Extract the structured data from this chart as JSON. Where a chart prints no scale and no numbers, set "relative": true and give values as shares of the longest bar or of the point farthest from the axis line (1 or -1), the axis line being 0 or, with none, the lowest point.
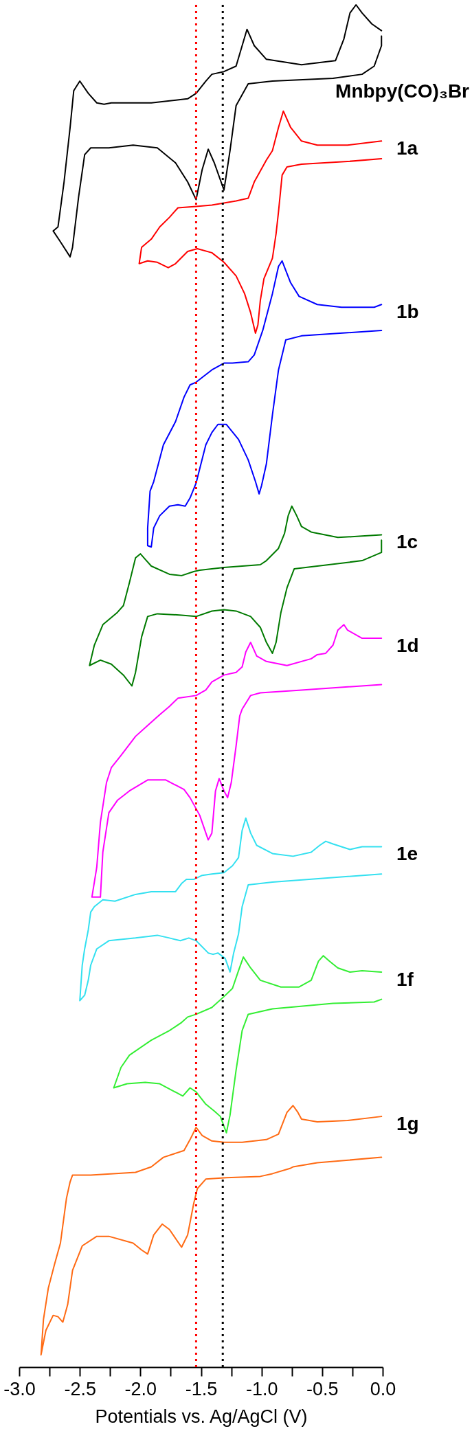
{
  "chart_data": {
    "type": "line",
    "relative": true,
    "xlabel": "Potentials vs. Ag/AgCl (V)",
    "xlim": [
      -3,
      0
    ],
    "xticks": [
      {
        "value": -3,
        "label": "-3.0"
      },
      {
        "value": -2.75,
        "label": null
      },
      {
        "value": -2.5,
        "label": "-2.5"
      },
      {
        "value": -2.25,
        "label": null
      },
      {
        "value": -2,
        "label": "-2.0"
      },
      {
        "value": -1.75,
        "label": null
      },
      {
        "value": -1.5,
        "label": "-1.5"
      },
      {
        "value": -1.25,
        "label": null
      },
      {
        "value": -1,
        "label": "-1.0"
      },
      {
        "value": -0.75,
        "label": null
      },
      {
        "value": -0.5,
        "label": "-0.5"
      },
      {
        "value": -0.25,
        "label": null
      },
      {
        "value": 0,
        "label": "0.0"
      }
    ],
    "ref_lines": [
      {
        "axis": "x",
        "value": -1.54,
        "color": "#ff0000",
        "line_style": "dotted"
      },
      {
        "axis": "x",
        "value": -1.32,
        "color": "#000000",
        "line_style": "dotted"
      }
    ],
    "series": [
      {
        "name": "Mnbpy(CO)₃Br",
        "color": "#000000",
        "x": [
          -0.01,
          -0.09,
          -0.17,
          -0.22,
          -0.27,
          -0.32,
          -0.39,
          -0.67,
          -0.96,
          -1.06,
          -1.12,
          -1.16,
          -1.21,
          -1.31,
          -1.41,
          -1.46,
          -1.54,
          -1.61,
          -1.91,
          -2.16,
          -2.24,
          -2.3,
          -2.36,
          -2.43,
          -2.5,
          -2.55,
          -2.58,
          -2.63,
          -2.68,
          -2.72,
          -2.66,
          -2.58,
          -2.56,
          -2.51,
          -2.46,
          -2.41,
          -2.26,
          -2.06,
          -1.86,
          -1.71,
          -1.61,
          -1.54,
          -1.49,
          -1.44,
          -1.39,
          -1.31,
          -1.26,
          -1.21,
          -1.11,
          -0.91,
          -0.41,
          -0.17,
          -0.07,
          -0.01,
          -0.01
        ],
        "values": [
          0.981,
          0.986,
          0.994,
          1.0,
          0.994,
          0.975,
          0.959,
          0.956,
          0.96,
          0.97,
          0.982,
          0.97,
          0.955,
          0.951,
          0.949,
          0.944,
          0.935,
          0.931,
          0.928,
          0.928,
          0.928,
          0.927,
          0.928,
          0.935,
          0.944,
          0.937,
          0.91,
          0.87,
          0.837,
          0.834,
          0.826,
          0.815,
          0.822,
          0.859,
          0.89,
          0.895,
          0.895,
          0.897,
          0.895,
          0.884,
          0.87,
          0.857,
          0.879,
          0.894,
          0.884,
          0.864,
          0.893,
          0.926,
          0.942,
          0.944,
          0.946,
          0.949,
          0.955,
          0.97,
          0.977
        ]
      },
      {
        "name": "1a",
        "color": "#ff0000",
        "x": [
          -0.01,
          -0.29,
          -0.54,
          -0.67,
          -0.76,
          -0.82,
          -0.86,
          -0.91,
          -0.96,
          -1.06,
          -1.11,
          -1.21,
          -1.41,
          -1.54,
          -1.69,
          -1.76,
          -1.84,
          -1.91,
          -1.99,
          -2.01,
          -1.94,
          -1.86,
          -1.77,
          -1.71,
          -1.61,
          -1.53,
          -1.41,
          -1.31,
          -1.21,
          -1.14,
          -1.09,
          -1.05,
          -1.03,
          -1.01,
          -0.98,
          -0.91,
          -0.88,
          -0.86,
          -0.83,
          -0.79,
          -0.67,
          -0.29,
          -0.01
        ],
        "values": [
          0.9,
          0.897,
          0.897,
          0.9,
          0.91,
          0.922,
          0.91,
          0.893,
          0.886,
          0.87,
          0.858,
          0.856,
          0.853,
          0.852,
          0.851,
          0.844,
          0.837,
          0.828,
          0.822,
          0.81,
          0.812,
          0.811,
          0.807,
          0.81,
          0.819,
          0.821,
          0.818,
          0.811,
          0.801,
          0.788,
          0.774,
          0.759,
          0.765,
          0.783,
          0.799,
          0.814,
          0.832,
          0.848,
          0.875,
          0.881,
          0.883,
          0.885,
          0.887
        ]
      },
      {
        "name": "1b",
        "color": "#0000ff",
        "x": [
          -0.01,
          -0.07,
          -0.34,
          -0.54,
          -0.69,
          -0.76,
          -0.8,
          -0.83,
          -0.86,
          -0.91,
          -0.99,
          -1.06,
          -1.11,
          -1.24,
          -1.31,
          -1.41,
          -1.54,
          -1.59,
          -1.64,
          -1.71,
          -1.81,
          -1.89,
          -1.92,
          -1.94,
          -1.94,
          -1.91,
          -1.89,
          -1.84,
          -1.76,
          -1.69,
          -1.63,
          -1.59,
          -1.54,
          -1.46,
          -1.41,
          -1.36,
          -1.29,
          -1.19,
          -1.11,
          -1.05,
          -1.02,
          -1.0,
          -0.96,
          -0.91,
          -0.86,
          -0.8,
          -0.67,
          -0.01
        ],
        "values": [
          0.78,
          0.778,
          0.778,
          0.78,
          0.786,
          0.796,
          0.805,
          0.812,
          0.808,
          0.788,
          0.761,
          0.743,
          0.738,
          0.737,
          0.737,
          0.732,
          0.723,
          0.721,
          0.712,
          0.694,
          0.677,
          0.65,
          0.643,
          0.616,
          0.603,
          0.602,
          0.616,
          0.625,
          0.632,
          0.633,
          0.632,
          0.638,
          0.649,
          0.677,
          0.686,
          0.692,
          0.692,
          0.681,
          0.666,
          0.65,
          0.641,
          0.647,
          0.663,
          0.699,
          0.732,
          0.754,
          0.757,
          0.761
        ]
      },
      {
        "name": "1c",
        "color": "#007a00",
        "x": [
          -0.01,
          -0.17,
          -0.37,
          -0.59,
          -0.67,
          -0.71,
          -0.75,
          -0.78,
          -0.81,
          -0.86,
          -0.96,
          -1.01,
          -1.31,
          -1.51,
          -1.56,
          -1.66,
          -1.76,
          -1.91,
          -1.96,
          -2.0,
          -2.04,
          -2.09,
          -2.14,
          -2.19,
          -2.31,
          -2.38,
          -2.42,
          -2.33,
          -2.24,
          -2.14,
          -2.07,
          -2.04,
          -1.99,
          -1.94,
          -1.86,
          -1.66,
          -1.54,
          -1.41,
          -1.31,
          -1.21,
          -1.09,
          -1.01,
          -0.96,
          -0.91,
          -0.88,
          -0.84,
          -0.79,
          -0.73,
          -0.54,
          -0.17,
          -0.01,
          -0.01
        ],
        "values": [
          0.611,
          0.61,
          0.609,
          0.613,
          0.617,
          0.625,
          0.632,
          0.625,
          0.612,
          0.601,
          0.592,
          0.589,
          0.587,
          0.585,
          0.584,
          0.581,
          0.582,
          0.588,
          0.593,
          0.597,
          0.594,
          0.576,
          0.559,
          0.554,
          0.545,
          0.53,
          0.515,
          0.519,
          0.516,
          0.508,
          0.5,
          0.51,
          0.536,
          0.551,
          0.553,
          0.552,
          0.551,
          0.555,
          0.556,
          0.555,
          0.551,
          0.543,
          0.532,
          0.524,
          0.532,
          0.554,
          0.572,
          0.586,
          0.588,
          0.592,
          0.598,
          0.607
        ]
      },
      {
        "name": "1d",
        "color": "#ff00ff",
        "x": [
          -0.01,
          -0.17,
          -0.29,
          -0.32,
          -0.37,
          -0.41,
          -0.47,
          -0.54,
          -0.59,
          -0.79,
          -0.96,
          -1.04,
          -1.09,
          -1.13,
          -1.16,
          -1.21,
          -1.31,
          -1.41,
          -1.46,
          -1.54,
          -1.69,
          -1.76,
          -1.84,
          -1.94,
          -2.04,
          -2.16,
          -2.24,
          -2.28,
          -2.33,
          -2.36,
          -2.4,
          -2.33,
          -2.31,
          -2.26,
          -2.19,
          -2.09,
          -1.94,
          -1.79,
          -1.64,
          -1.59,
          -1.51,
          -1.44,
          -1.41,
          -1.38,
          -1.35,
          -1.31,
          -1.28,
          -1.25,
          -1.21,
          -1.18,
          -1.16,
          -1.09,
          -1.01,
          -0.67,
          -0.01
        ],
        "values": [
          0.535,
          0.535,
          0.541,
          0.545,
          0.541,
          0.53,
          0.524,
          0.523,
          0.52,
          0.515,
          0.518,
          0.522,
          0.532,
          0.525,
          0.514,
          0.51,
          0.508,
          0.503,
          0.497,
          0.493,
          0.491,
          0.485,
          0.479,
          0.471,
          0.463,
          0.449,
          0.44,
          0.429,
          0.4,
          0.367,
          0.345,
          0.345,
          0.378,
          0.407,
          0.416,
          0.423,
          0.431,
          0.431,
          0.424,
          0.418,
          0.405,
          0.387,
          0.392,
          0.423,
          0.432,
          0.423,
          0.418,
          0.429,
          0.456,
          0.478,
          0.483,
          0.493,
          0.495,
          0.497,
          0.501
        ]
      },
      {
        "name": "1e",
        "color": "#33e0f0",
        "x": [
          -0.01,
          -0.17,
          -0.27,
          -0.41,
          -0.47,
          -0.52,
          -0.59,
          -0.74,
          -0.91,
          -1.04,
          -1.09,
          -1.13,
          -1.16,
          -1.19,
          -1.24,
          -1.31,
          -1.41,
          -1.49,
          -1.56,
          -1.62,
          -1.66,
          -1.71,
          -1.91,
          -2.04,
          -2.21,
          -2.31,
          -2.38,
          -2.41,
          -2.43,
          -2.46,
          -2.48,
          -2.5,
          -2.46,
          -2.43,
          -2.41,
          -2.36,
          -2.26,
          -2.04,
          -1.86,
          -1.76,
          -1.67,
          -1.6,
          -1.54,
          -1.44,
          -1.4,
          -1.36,
          -1.3,
          -1.26,
          -1.23,
          -1.19,
          -1.16,
          -1.11,
          -0.91,
          -0.01
        ],
        "values": [
          0.382,
          0.382,
          0.38,
          0.384,
          0.386,
          0.383,
          0.378,
          0.375,
          0.377,
          0.383,
          0.392,
          0.403,
          0.394,
          0.374,
          0.368,
          0.363,
          0.362,
          0.361,
          0.358,
          0.358,
          0.355,
          0.349,
          0.349,
          0.347,
          0.342,
          0.343,
          0.338,
          0.334,
          0.321,
          0.307,
          0.295,
          0.269,
          0.273,
          0.284,
          0.295,
          0.307,
          0.313,
          0.315,
          0.317,
          0.315,
          0.313,
          0.315,
          0.313,
          0.304,
          0.303,
          0.304,
          0.3,
          0.29,
          0.304,
          0.318,
          0.338,
          0.354,
          0.356,
          0.362
        ]
      },
      {
        "name": "1f",
        "color": "#33ee33",
        "x": [
          -0.01,
          -0.17,
          -0.27,
          -0.37,
          -0.44,
          -0.49,
          -0.53,
          -0.59,
          -0.69,
          -0.84,
          -1.01,
          -1.09,
          -1.15,
          -1.19,
          -1.24,
          -1.31,
          -1.41,
          -1.54,
          -1.61,
          -1.66,
          -1.76,
          -1.91,
          -2.09,
          -2.16,
          -2.22,
          -2.11,
          -1.96,
          -1.84,
          -1.65,
          -1.59,
          -1.54,
          -1.46,
          -1.39,
          -1.34,
          -1.29,
          -1.26,
          -1.21,
          -1.16,
          -1.11,
          -0.91,
          -0.41,
          -0.07,
          -0.01
        ],
        "values": [
          0.29,
          0.291,
          0.29,
          0.293,
          0.298,
          0.302,
          0.298,
          0.284,
          0.279,
          0.279,
          0.284,
          0.293,
          0.301,
          0.291,
          0.278,
          0.272,
          0.264,
          0.259,
          0.257,
          0.253,
          0.247,
          0.24,
          0.229,
          0.22,
          0.205,
          0.208,
          0.209,
          0.208,
          0.199,
          0.205,
          0.202,
          0.193,
          0.188,
          0.184,
          0.172,
          0.185,
          0.218,
          0.247,
          0.259,
          0.263,
          0.267,
          0.268,
          0.27
        ]
      },
      {
        "name": "1g",
        "color": "#ff6a13",
        "x": [
          -0.01,
          -0.29,
          -0.54,
          -0.67,
          -0.7,
          -0.74,
          -0.79,
          -0.86,
          -0.96,
          -1.16,
          -1.31,
          -1.41,
          -1.49,
          -1.54,
          -1.59,
          -1.64,
          -1.81,
          -1.91,
          -2.04,
          -2.41,
          -2.56,
          -2.58,
          -2.61,
          -2.66,
          -2.71,
          -2.76,
          -2.8,
          -2.82,
          -2.78,
          -2.72,
          -2.68,
          -2.64,
          -2.6,
          -2.56,
          -2.48,
          -2.36,
          -2.26,
          -2.06,
          -1.99,
          -1.94,
          -1.89,
          -1.82,
          -1.76,
          -1.66,
          -1.61,
          -1.56,
          -1.53,
          -1.46,
          -1.29,
          -1.01,
          -0.91,
          -0.76,
          -0.74,
          -0.54,
          -0.01
        ],
        "values": [
          0.184,
          0.181,
          0.18,
          0.182,
          0.187,
          0.192,
          0.187,
          0.171,
          0.167,
          0.165,
          0.165,
          0.166,
          0.17,
          0.176,
          0.167,
          0.159,
          0.154,
          0.147,
          0.143,
          0.141,
          0.141,
          0.136,
          0.124,
          0.091,
          0.075,
          0.058,
          0.035,
          0.009,
          0.027,
          0.038,
          0.037,
          0.033,
          0.046,
          0.071,
          0.089,
          0.096,
          0.096,
          0.091,
          0.086,
          0.083,
          0.097,
          0.105,
          0.101,
          0.088,
          0.097,
          0.12,
          0.131,
          0.138,
          0.139,
          0.14,
          0.142,
          0.146,
          0.147,
          0.15,
          0.154
        ]
      }
    ]
  }
}
